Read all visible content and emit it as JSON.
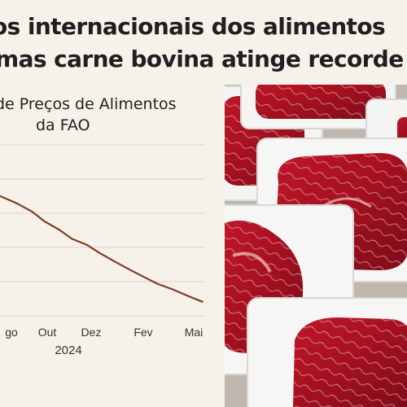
{
  "headline": {
    "line1": "os internacionais dos alimentos",
    "line2": "mas carne bovina atinge recorde"
  },
  "chart_data": {
    "type": "line",
    "title_line1": "de Preços de Alimentos",
    "title_line2": "da FAO",
    "categories": [
      "Ago",
      "Out",
      "Dez",
      "Fev",
      "Mai"
    ],
    "tick_labels": [
      "go",
      "Out",
      "Dez",
      "Fev",
      "Mai"
    ],
    "year_label": "2024",
    "x": [
      0,
      0.5,
      1,
      1.6,
      2.1,
      2.7,
      3.2,
      3.8,
      4.3,
      4.9,
      5.5,
      6.1,
      6.6,
      7.2,
      7.8,
      8.4
    ],
    "values": [
      128.8,
      127.6,
      126.3,
      124.4,
      122.1,
      120.1,
      118.0,
      116.6,
      114.7,
      112.7,
      110.8,
      109.0,
      107.5,
      106.2,
      104.7,
      103.3
    ],
    "xlabel": "",
    "ylabel": "",
    "grid": true,
    "series_color": "#7a4025"
  },
  "photo": {
    "subject": "raw-steaks-in-white-trays"
  }
}
